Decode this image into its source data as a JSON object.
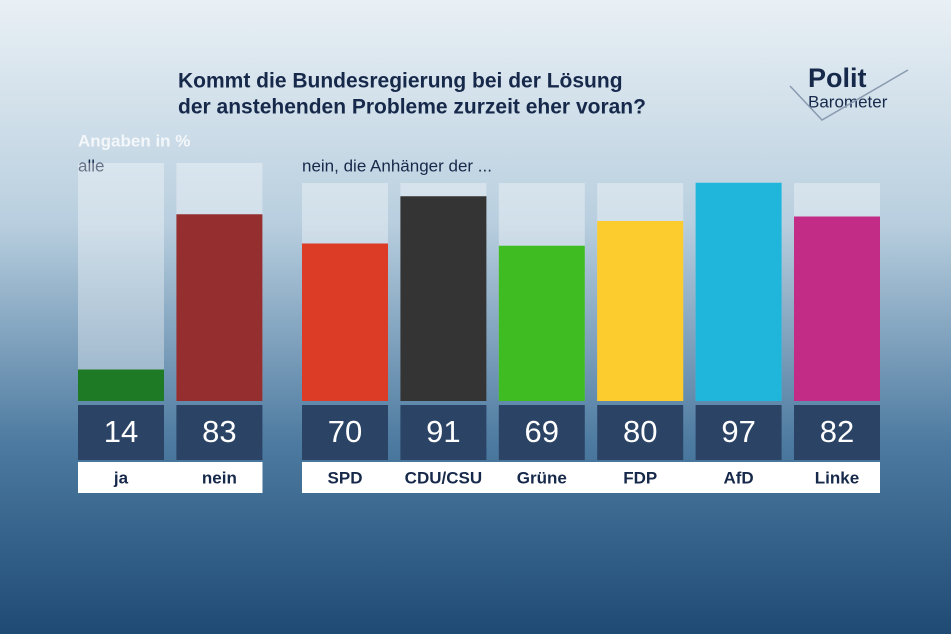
{
  "title": [
    "Kommt die Bundesregierung bei der Lösung",
    "der anstehenden Probleme zurzeit eher voran?"
  ],
  "unit_note": "Angaben in %",
  "logo": {
    "line1": "Polit",
    "line2": "Barometer"
  },
  "chart_data": [
    {
      "type": "bar",
      "subtitle": "alle",
      "categories": [
        "ja",
        "nein"
      ],
      "values": [
        14,
        83
      ],
      "colors": [
        "#1f7a25",
        "#952f2f"
      ],
      "ylim": [
        0,
        100
      ]
    },
    {
      "type": "bar",
      "subtitle": "nein, die Anhänger der ...",
      "categories": [
        "SPD",
        "CDU/CSU",
        "Grüne",
        "FDP",
        "AfD",
        "Linke"
      ],
      "values": [
        70,
        91,
        69,
        80,
        97,
        82
      ],
      "colors": [
        "#dc3b26",
        "#343434",
        "#3fbc22",
        "#fccb2e",
        "#20b6dc",
        "#c22c86"
      ],
      "ylim": [
        0,
        100
      ]
    }
  ]
}
